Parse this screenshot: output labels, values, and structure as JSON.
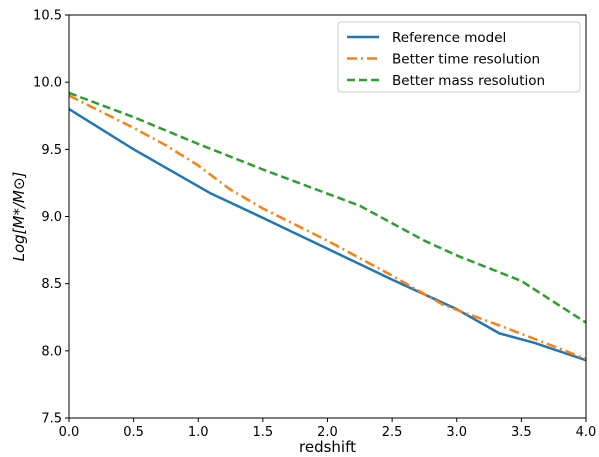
{
  "chart_data": {
    "type": "line",
    "xlabel": "redshift",
    "ylabel": "Log[M*/M⊙]",
    "xlim": [
      0.0,
      4.0
    ],
    "ylim": [
      7.5,
      10.5
    ],
    "xticks": [
      "0.0",
      "0.5",
      "1.0",
      "1.5",
      "2.0",
      "2.5",
      "3.0",
      "3.5",
      "4.0"
    ],
    "yticks": [
      "7.5",
      "8.0",
      "8.5",
      "9.0",
      "9.5",
      "10.0",
      "10.5"
    ],
    "grid": false,
    "legend_position": "top-right",
    "series": [
      {
        "name": "Reference model",
        "color": "#1f77b4",
        "style": "solid",
        "x": [
          0.0,
          0.5,
          1.1,
          1.5,
          2.0,
          2.5,
          3.0,
          3.33,
          3.6,
          4.0
        ],
        "y": [
          9.8,
          9.5,
          9.17,
          8.99,
          8.76,
          8.53,
          8.31,
          8.13,
          8.06,
          7.93
        ]
      },
      {
        "name": "Better time resolution",
        "color": "#ff7f0e",
        "style": "dashdot",
        "x": [
          0.0,
          0.25,
          0.5,
          0.75,
          1.0,
          1.25,
          1.5,
          2.0,
          2.5,
          2.9,
          3.3,
          3.6,
          4.0
        ],
        "y": [
          9.9,
          9.78,
          9.66,
          9.53,
          9.38,
          9.2,
          9.06,
          8.82,
          8.56,
          8.34,
          8.2,
          8.09,
          7.94
        ]
      },
      {
        "name": "Better mass resolution",
        "color": "#2ca02c",
        "style": "dashed",
        "x": [
          0.0,
          0.5,
          1.0,
          1.5,
          2.25,
          2.75,
          3.0,
          3.5,
          4.0
        ],
        "y": [
          9.92,
          9.74,
          9.54,
          9.35,
          9.08,
          8.82,
          8.71,
          8.52,
          8.21
        ]
      }
    ]
  }
}
